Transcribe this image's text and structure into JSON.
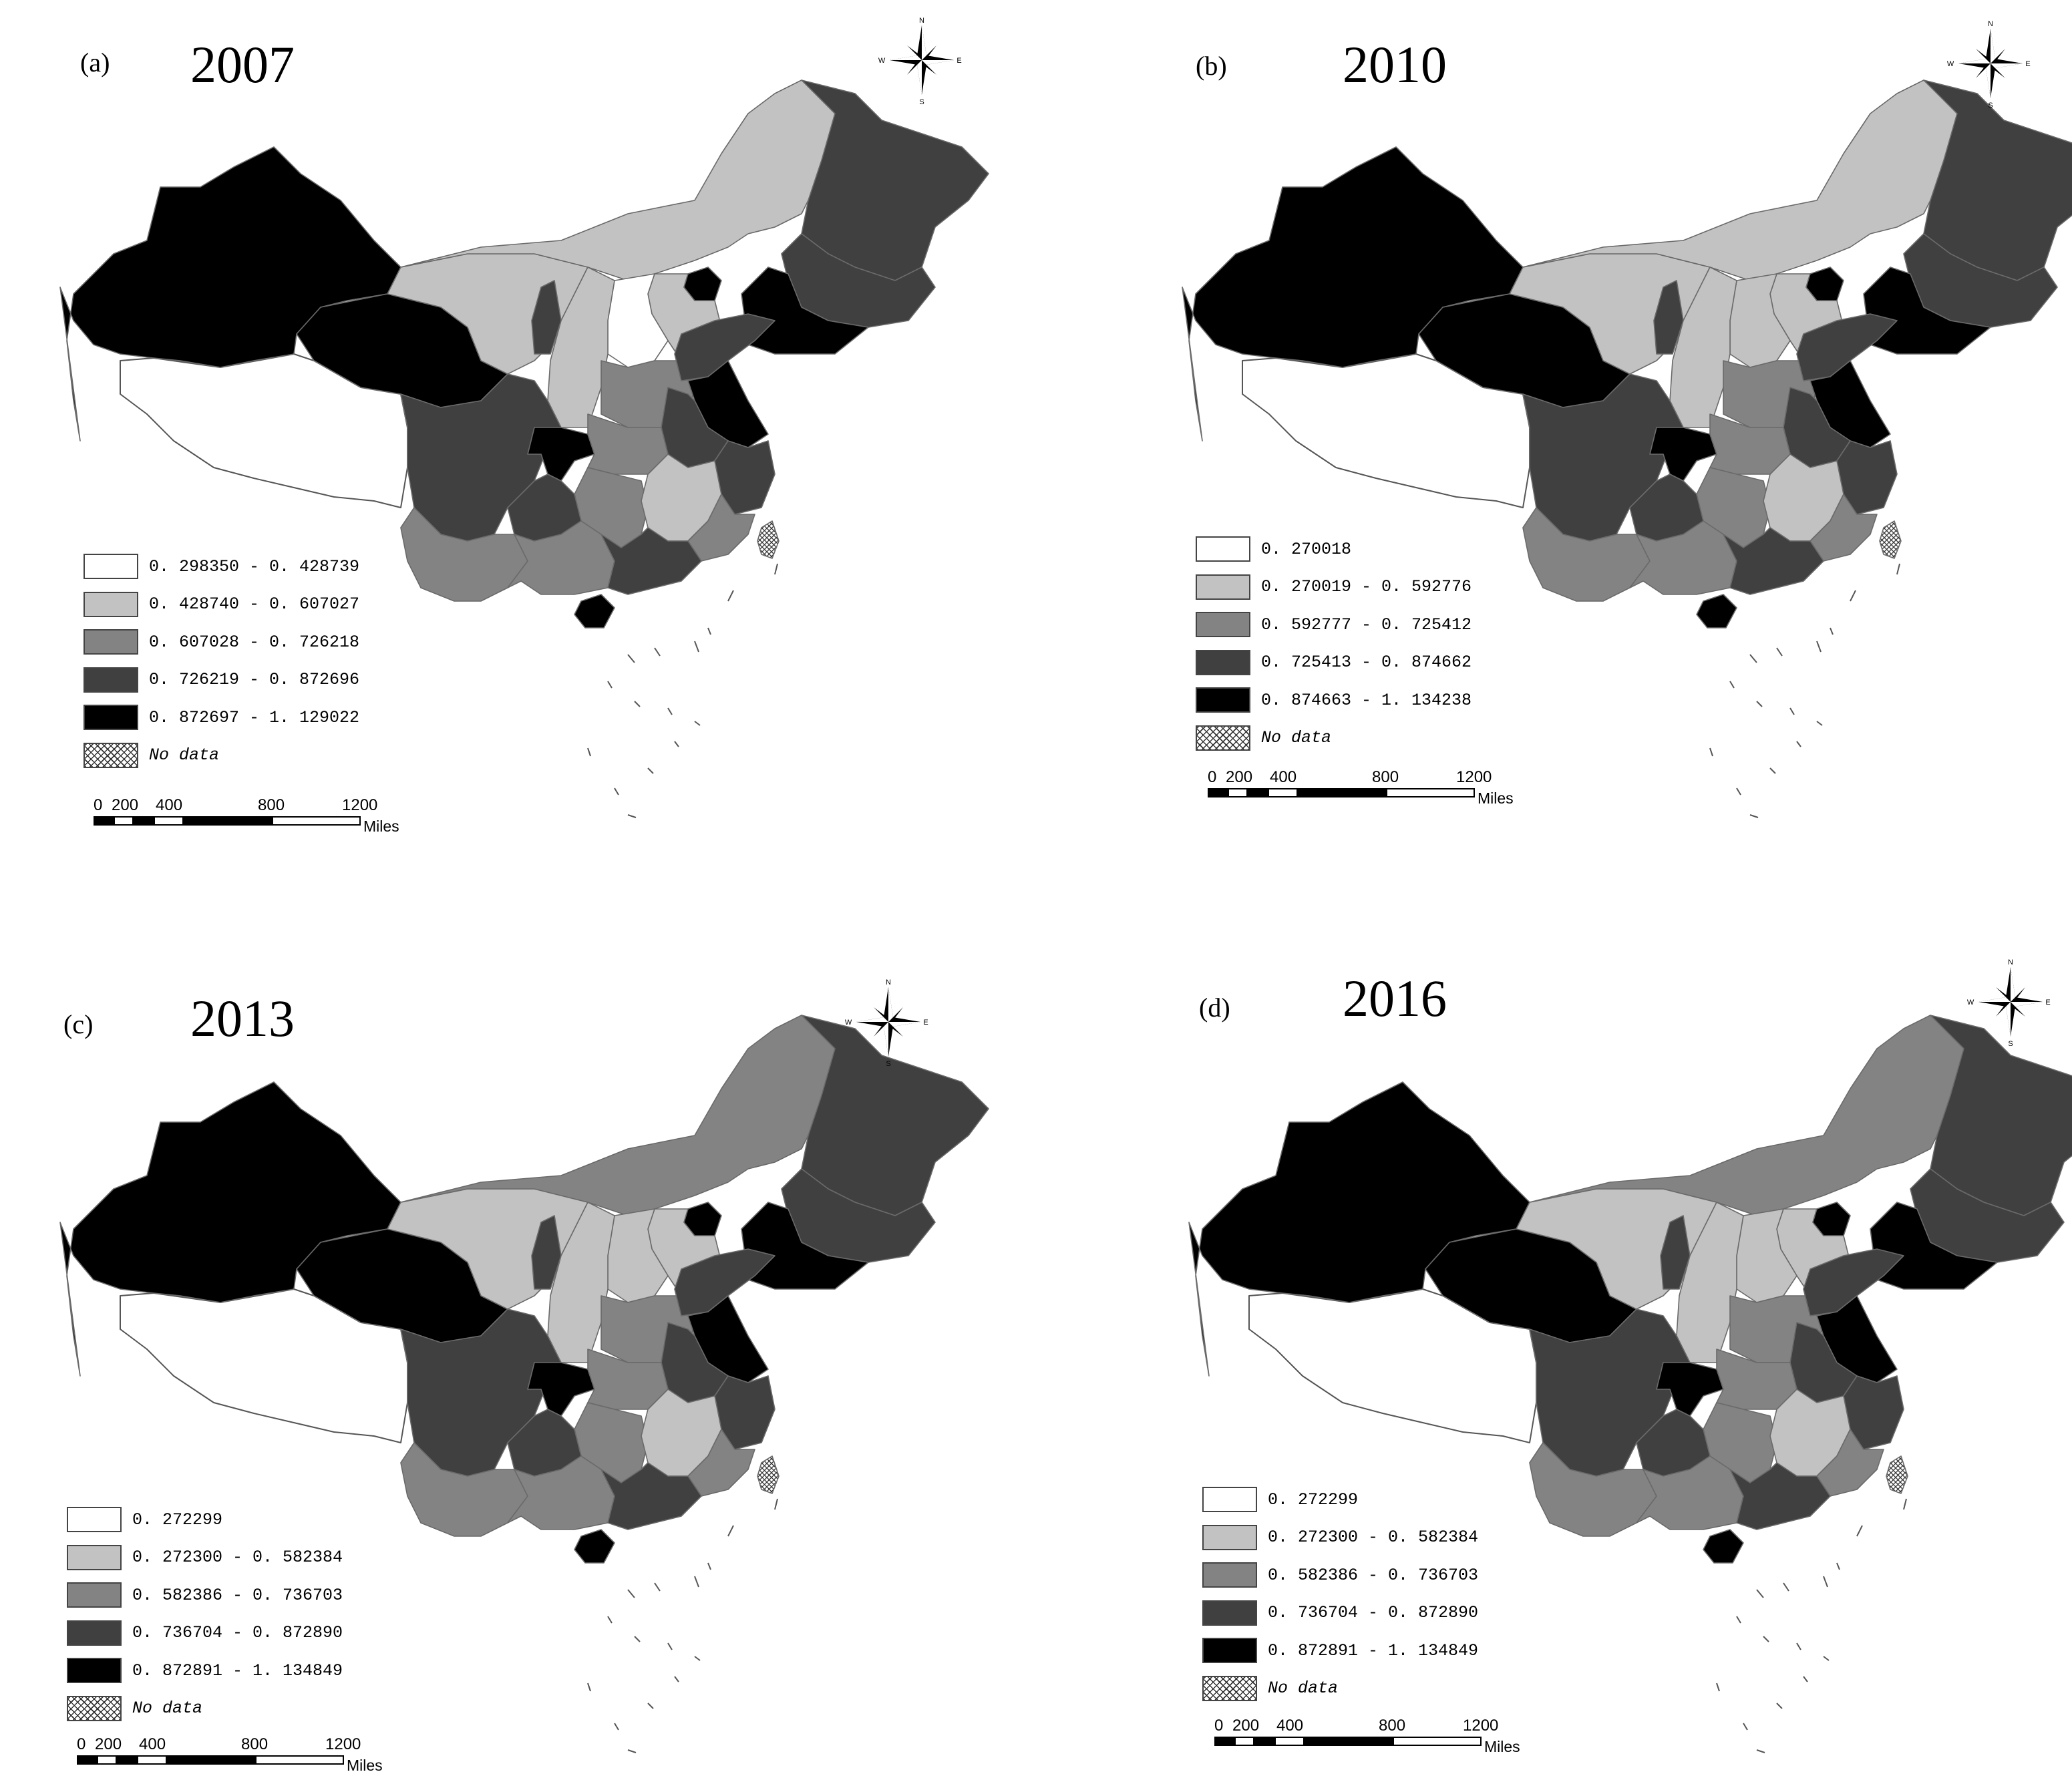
{
  "colors": {
    "c1": "#ffffff",
    "c2": "#c2c2c2",
    "c3": "#838383",
    "c4": "#404040",
    "c5": "#000000",
    "outline": "#555555"
  },
  "compass_letters": {
    "n": "N",
    "s": "S",
    "e": "E",
    "w": "W"
  },
  "panels": [
    {
      "label": "(a)",
      "year": "2007",
      "legend": [
        {
          "text": "0. 298350 - 0. 428739",
          "cls": "c1"
        },
        {
          "text": "0. 428740 - 0. 607027",
          "cls": "c2"
        },
        {
          "text": "0. 607028 - 0. 726218",
          "cls": "c3"
        },
        {
          "text": "0. 726219 - 0. 872696",
          "cls": "c4"
        },
        {
          "text": "0. 872697 - 1. 129022",
          "cls": "c5"
        },
        {
          "text": "No data",
          "cls": "nodata"
        }
      ],
      "scale": {
        "ticks": [
          "0",
          "200",
          "400",
          "800",
          "1200"
        ],
        "unit": "Miles"
      },
      "regions": {
        "xinjiang": "c5",
        "tibet": "c1",
        "qinghai": "c5",
        "gansu": "c2",
        "inner_mongolia": "c2",
        "heilongjiang": "c4",
        "jilin": "c4",
        "liaoning": "c5",
        "beijing_tianjin": "c5",
        "hebei": "c2",
        "shanxi": "c1",
        "ningxia": "c4",
        "shaanxi": "c2",
        "henan": "c3",
        "shandong": "c4",
        "jiangsu": "c5",
        "anhui": "c4",
        "zhejiang": "c4",
        "sichuan": "c4",
        "chongqing": "c5",
        "hubei": "c3",
        "hunan": "c3",
        "jiangxi": "c2",
        "fujian": "c3",
        "guizhou": "c4",
        "yunnan": "c3",
        "guangxi": "c3",
        "guangdong": "c4",
        "hainan": "c5",
        "taiwan": "nodata"
      }
    },
    {
      "label": "(b)",
      "year": "2010",
      "legend": [
        {
          "text": "0. 270018",
          "cls": "c1"
        },
        {
          "text": "0. 270019 - 0. 592776",
          "cls": "c2"
        },
        {
          "text": "0. 592777 - 0. 725412",
          "cls": "c3"
        },
        {
          "text": "0. 725413 - 0. 874662",
          "cls": "c4"
        },
        {
          "text": "0. 874663 - 1. 134238",
          "cls": "c5"
        },
        {
          "text": "No data",
          "cls": "nodata"
        }
      ],
      "scale": {
        "ticks": [
          "0",
          "200",
          "400",
          "800",
          "1200"
        ],
        "unit": "Miles"
      },
      "regions": {
        "xinjiang": "c5",
        "tibet": "c1",
        "qinghai": "c5",
        "gansu": "c2",
        "inner_mongolia": "c2",
        "heilongjiang": "c4",
        "jilin": "c4",
        "liaoning": "c5",
        "beijing_tianjin": "c5",
        "hebei": "c2",
        "shanxi": "c2",
        "ningxia": "c4",
        "shaanxi": "c2",
        "henan": "c3",
        "shandong": "c4",
        "jiangsu": "c5",
        "anhui": "c4",
        "zhejiang": "c4",
        "sichuan": "c4",
        "chongqing": "c5",
        "hubei": "c3",
        "hunan": "c3",
        "jiangxi": "c2",
        "fujian": "c3",
        "guizhou": "c4",
        "yunnan": "c3",
        "guangxi": "c3",
        "guangdong": "c4",
        "hainan": "c5",
        "taiwan": "nodata"
      }
    },
    {
      "label": "(c)",
      "year": "2013",
      "legend": [
        {
          "text": "0. 272299",
          "cls": "c1"
        },
        {
          "text": "0. 272300 - 0. 582384",
          "cls": "c2"
        },
        {
          "text": "0. 582386 - 0. 736703",
          "cls": "c3"
        },
        {
          "text": "0. 736704 - 0. 872890",
          "cls": "c4"
        },
        {
          "text": "0. 872891 - 1. 134849",
          "cls": "c5"
        },
        {
          "text": "No data",
          "cls": "nodata"
        }
      ],
      "scale": {
        "ticks": [
          "0",
          "200",
          "400",
          "800",
          "1200"
        ],
        "unit": "Miles"
      },
      "regions": {
        "xinjiang": "c5",
        "tibet": "c1",
        "qinghai": "c5",
        "gansu": "c2",
        "inner_mongolia": "c3",
        "heilongjiang": "c4",
        "jilin": "c4",
        "liaoning": "c5",
        "beijing_tianjin": "c5",
        "hebei": "c2",
        "shanxi": "c2",
        "ningxia": "c4",
        "shaanxi": "c2",
        "henan": "c3",
        "shandong": "c4",
        "jiangsu": "c5",
        "anhui": "c4",
        "zhejiang": "c4",
        "sichuan": "c4",
        "chongqing": "c5",
        "hubei": "c3",
        "hunan": "c3",
        "jiangxi": "c2",
        "fujian": "c3",
        "guizhou": "c4",
        "yunnan": "c3",
        "guangxi": "c3",
        "guangdong": "c4",
        "hainan": "c5",
        "taiwan": "nodata"
      }
    },
    {
      "label": "(d)",
      "year": "2016",
      "legend": [
        {
          "text": "0. 272299",
          "cls": "c1"
        },
        {
          "text": "0. 272300 - 0. 582384",
          "cls": "c2"
        },
        {
          "text": "0. 582386 - 0. 736703",
          "cls": "c3"
        },
        {
          "text": "0. 736704 - 0. 872890",
          "cls": "c4"
        },
        {
          "text": "0. 872891 - 1. 134849",
          "cls": "c5"
        },
        {
          "text": "No data",
          "cls": "nodata"
        }
      ],
      "scale": {
        "ticks": [
          "0",
          "200",
          "400",
          "800",
          "1200"
        ],
        "unit": "Miles"
      },
      "regions": {
        "xinjiang": "c5",
        "tibet": "c1",
        "qinghai": "c5",
        "gansu": "c2",
        "inner_mongolia": "c3",
        "heilongjiang": "c4",
        "jilin": "c4",
        "liaoning": "c5",
        "beijing_tianjin": "c5",
        "hebei": "c2",
        "shanxi": "c2",
        "ningxia": "c4",
        "shaanxi": "c2",
        "henan": "c3",
        "shandong": "c4",
        "jiangsu": "c5",
        "anhui": "c4",
        "zhejiang": "c4",
        "sichuan": "c4",
        "chongqing": "c5",
        "hubei": "c3",
        "hunan": "c3",
        "jiangxi": "c2",
        "fujian": "c3",
        "guizhou": "c4",
        "yunnan": "c3",
        "guangxi": "c3",
        "guangdong": "c4",
        "hainan": "c5",
        "taiwan": "nodata"
      }
    }
  ]
}
